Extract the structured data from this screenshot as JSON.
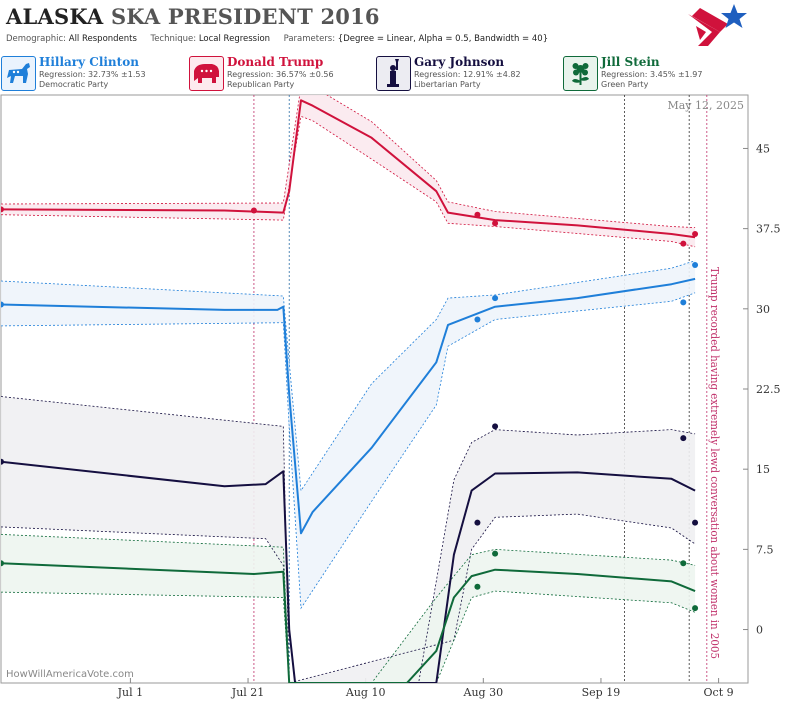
{
  "header": {
    "title_state": "ALASKA",
    "title_rest": "SKA PRESIDENT 2016",
    "demographic_label": "Demographic:",
    "demographic_value": "All Respondents",
    "technique_label": "Technique:",
    "technique_value": "Local Regression",
    "parameters_label": "Parameters:",
    "parameters_value": "{Degree = Linear, Alpha = 0.5, Bandwidth = 40}",
    "logo_icon": "star-flag-logo-icon"
  },
  "candidates": [
    {
      "name": "Hillary Clinton",
      "regression": "Regression: 32.73% ±1.53",
      "party": "Democratic Party",
      "color": "#1f7fd9",
      "icon": "donkey-icon"
    },
    {
      "name": "Donald Trump",
      "regression": "Regression: 36.57% ±0.56",
      "party": "Republican Party",
      "color": "#d0123c",
      "icon": "elephant-icon"
    },
    {
      "name": "Gary Johnson",
      "regression": "Regression: 12.91% ±4.82",
      "party": "Libertarian Party",
      "color": "#150f40",
      "icon": "liberty-statue-icon"
    },
    {
      "name": "Jill Stein",
      "regression": "Regression: 3.45% ±1.97",
      "party": "Green Party",
      "color": "#0f6a3a",
      "icon": "flower-icon"
    }
  ],
  "chart_data": {
    "type": "line",
    "date_label": "May 12, 2025",
    "watermark": "HowWillAmericaVote.com",
    "annotation": "Trump recorded having extremely lewd conversation about women in 2005",
    "x_ticks": [
      "Jul 1",
      "Jul 21",
      "Aug 10",
      "Aug 30",
      "Sep 19",
      "Oct 9"
    ],
    "y_ticks": [
      "0",
      "7.5",
      "15",
      "22.5",
      "30",
      "37.5",
      "45"
    ],
    "ylim": [
      -5,
      50
    ],
    "xlim": [
      "2016-06-09",
      "2016-10-14"
    ],
    "event_lines": [
      "2016-07-22",
      "2016-07-28",
      "2016-09-23",
      "2016-10-04",
      "2016-10-07"
    ],
    "convention_lines": [
      "2016-07-22",
      "2016-07-28"
    ],
    "series": [
      {
        "name": "Donald Trump",
        "color": "#d0123c",
        "band_fill": "#fbe9ee",
        "line": [
          [
            "2016-06-09",
            39.3
          ],
          [
            "2016-07-17",
            39.2
          ],
          [
            "2016-07-27",
            39.0
          ],
          [
            "2016-07-28",
            41.0
          ],
          [
            "2016-07-30",
            49.5
          ],
          [
            "2016-08-01",
            49.0
          ],
          [
            "2016-08-11",
            46.0
          ],
          [
            "2016-08-22",
            41.0
          ],
          [
            "2016-08-24",
            39.0
          ],
          [
            "2016-09-01",
            38.3
          ],
          [
            "2016-09-15",
            37.8
          ],
          [
            "2016-10-01",
            37.0
          ],
          [
            "2016-10-05",
            36.7
          ]
        ],
        "upper": [
          [
            "2016-06-09",
            39.8
          ],
          [
            "2016-07-27",
            39.9
          ],
          [
            "2016-07-30",
            50.8
          ],
          [
            "2016-08-01",
            50.8
          ],
          [
            "2016-08-11",
            47.5
          ],
          [
            "2016-08-22",
            42.0
          ],
          [
            "2016-08-24",
            40.0
          ],
          [
            "2016-09-01",
            39.1
          ],
          [
            "2016-10-01",
            37.7
          ],
          [
            "2016-10-05",
            37.6
          ]
        ],
        "lower": [
          [
            "2016-06-09",
            38.8
          ],
          [
            "2016-07-27",
            38.3
          ],
          [
            "2016-07-30",
            48.0
          ],
          [
            "2016-08-01",
            47.6
          ],
          [
            "2016-08-11",
            44.0
          ],
          [
            "2016-08-22",
            40.0
          ],
          [
            "2016-08-24",
            38.0
          ],
          [
            "2016-09-01",
            37.7
          ],
          [
            "2016-10-01",
            36.3
          ],
          [
            "2016-10-05",
            35.8
          ]
        ],
        "points": [
          [
            "2016-06-09",
            39.3
          ],
          [
            "2016-07-22",
            39.2
          ],
          [
            "2016-08-29",
            38.8
          ],
          [
            "2016-09-01",
            38.0
          ],
          [
            "2016-10-03",
            36.1
          ],
          [
            "2016-10-05",
            37.0
          ]
        ]
      },
      {
        "name": "Hillary Clinton",
        "color": "#1f7fd9",
        "band_fill": "#eef4fb",
        "line": [
          [
            "2016-06-09",
            30.4
          ],
          [
            "2016-07-17",
            29.9
          ],
          [
            "2016-07-26",
            29.9
          ],
          [
            "2016-07-27",
            30.2
          ],
          [
            "2016-07-28",
            22.0
          ],
          [
            "2016-07-30",
            9.0
          ],
          [
            "2016-08-01",
            11.0
          ],
          [
            "2016-08-11",
            17.0
          ],
          [
            "2016-08-22",
            25.0
          ],
          [
            "2016-08-24",
            28.5
          ],
          [
            "2016-09-01",
            30.2
          ],
          [
            "2016-09-15",
            31.0
          ],
          [
            "2016-10-01",
            32.3
          ],
          [
            "2016-10-05",
            32.8
          ]
        ],
        "upper": [
          [
            "2016-06-09",
            32.6
          ],
          [
            "2016-07-27",
            31.2
          ],
          [
            "2016-07-28",
            25.0
          ],
          [
            "2016-07-30",
            13.0
          ],
          [
            "2016-08-11",
            23.0
          ],
          [
            "2016-08-22",
            29.0
          ],
          [
            "2016-08-24",
            31.0
          ],
          [
            "2016-09-01",
            31.3
          ],
          [
            "2016-10-01",
            33.8
          ],
          [
            "2016-10-05",
            34.5
          ]
        ],
        "lower": [
          [
            "2016-06-09",
            28.4
          ],
          [
            "2016-07-27",
            28.7
          ],
          [
            "2016-07-28",
            19.0
          ],
          [
            "2016-07-30",
            2.0
          ],
          [
            "2016-08-11",
            12.0
          ],
          [
            "2016-08-22",
            21.0
          ],
          [
            "2016-08-24",
            26.5
          ],
          [
            "2016-09-01",
            29.0
          ],
          [
            "2016-10-01",
            30.7
          ],
          [
            "2016-10-05",
            31.5
          ]
        ],
        "points": [
          [
            "2016-06-09",
            30.4
          ],
          [
            "2016-08-29",
            29.0
          ],
          [
            "2016-09-01",
            31.0
          ],
          [
            "2016-10-03",
            30.6
          ],
          [
            "2016-10-05",
            34.1
          ]
        ]
      },
      {
        "name": "Gary Johnson",
        "color": "#150f40",
        "band_fill": "#f0f0f2",
        "line": [
          [
            "2016-06-09",
            15.7
          ],
          [
            "2016-07-17",
            13.4
          ],
          [
            "2016-07-24",
            13.6
          ],
          [
            "2016-07-27",
            14.8
          ],
          [
            "2016-07-28",
            0.0
          ],
          [
            "2016-07-29",
            -5.0
          ],
          [
            "2016-08-22",
            -5.0
          ],
          [
            "2016-08-25",
            7.0
          ],
          [
            "2016-08-28",
            13.0
          ],
          [
            "2016-09-01",
            14.6
          ],
          [
            "2016-09-15",
            14.7
          ],
          [
            "2016-10-01",
            14.1
          ],
          [
            "2016-10-05",
            13.0
          ]
        ],
        "upper": [
          [
            "2016-06-09",
            21.8
          ],
          [
            "2016-07-27",
            19.0
          ],
          [
            "2016-07-28",
            -5.0
          ],
          [
            "2016-08-19",
            -5.0
          ],
          [
            "2016-08-25",
            14.0
          ],
          [
            "2016-08-28",
            17.5
          ],
          [
            "2016-09-01",
            18.7
          ],
          [
            "2016-09-15",
            18.2
          ],
          [
            "2016-10-01",
            18.7
          ],
          [
            "2016-10-05",
            18.3
          ]
        ],
        "lower": [
          [
            "2016-06-09",
            9.6
          ],
          [
            "2016-07-24",
            8.5
          ],
          [
            "2016-07-27",
            6.0
          ],
          [
            "2016-07-28",
            -5.0
          ],
          [
            "2016-08-25",
            -1.0
          ],
          [
            "2016-08-28",
            7.5
          ],
          [
            "2016-09-01",
            10.5
          ],
          [
            "2016-09-15",
            10.8
          ],
          [
            "2016-10-01",
            9.5
          ],
          [
            "2016-10-05",
            8.0
          ]
        ],
        "points": [
          [
            "2016-06-09",
            15.7
          ],
          [
            "2016-08-29",
            10.0
          ],
          [
            "2016-09-01",
            19.0
          ],
          [
            "2016-10-03",
            17.9
          ],
          [
            "2016-10-05",
            10.0
          ]
        ]
      },
      {
        "name": "Jill Stein",
        "color": "#0f6a3a",
        "band_fill": "#edf5ef",
        "line": [
          [
            "2016-06-09",
            6.2
          ],
          [
            "2016-07-22",
            5.2
          ],
          [
            "2016-07-27",
            5.4
          ],
          [
            "2016-07-28",
            -5.0
          ],
          [
            "2016-08-17",
            -5.0
          ],
          [
            "2016-08-22",
            -2.0
          ],
          [
            "2016-08-25",
            3.0
          ],
          [
            "2016-08-28",
            5.0
          ],
          [
            "2016-09-01",
            5.6
          ],
          [
            "2016-09-15",
            5.2
          ],
          [
            "2016-10-01",
            4.5
          ],
          [
            "2016-10-05",
            3.6
          ]
        ],
        "upper": [
          [
            "2016-06-09",
            8.9
          ],
          [
            "2016-07-27",
            7.7
          ],
          [
            "2016-07-28",
            -5.0
          ],
          [
            "2016-08-11",
            -5.0
          ],
          [
            "2016-08-22",
            3.0
          ],
          [
            "2016-08-28",
            7.0
          ],
          [
            "2016-09-01",
            7.5
          ],
          [
            "2016-10-01",
            6.5
          ],
          [
            "2016-10-05",
            6.0
          ]
        ],
        "lower": [
          [
            "2016-06-09",
            3.5
          ],
          [
            "2016-07-27",
            3.0
          ],
          [
            "2016-07-28",
            -5.0
          ],
          [
            "2016-08-22",
            -5.0
          ],
          [
            "2016-08-25",
            -1.0
          ],
          [
            "2016-08-28",
            3.0
          ],
          [
            "2016-09-01",
            3.6
          ],
          [
            "2016-10-01",
            2.5
          ],
          [
            "2016-10-05",
            1.6
          ]
        ],
        "points": [
          [
            "2016-06-09",
            6.2
          ],
          [
            "2016-08-29",
            4.0
          ],
          [
            "2016-09-01",
            7.1
          ],
          [
            "2016-10-03",
            6.2
          ],
          [
            "2016-10-05",
            2.0
          ]
        ]
      }
    ]
  }
}
